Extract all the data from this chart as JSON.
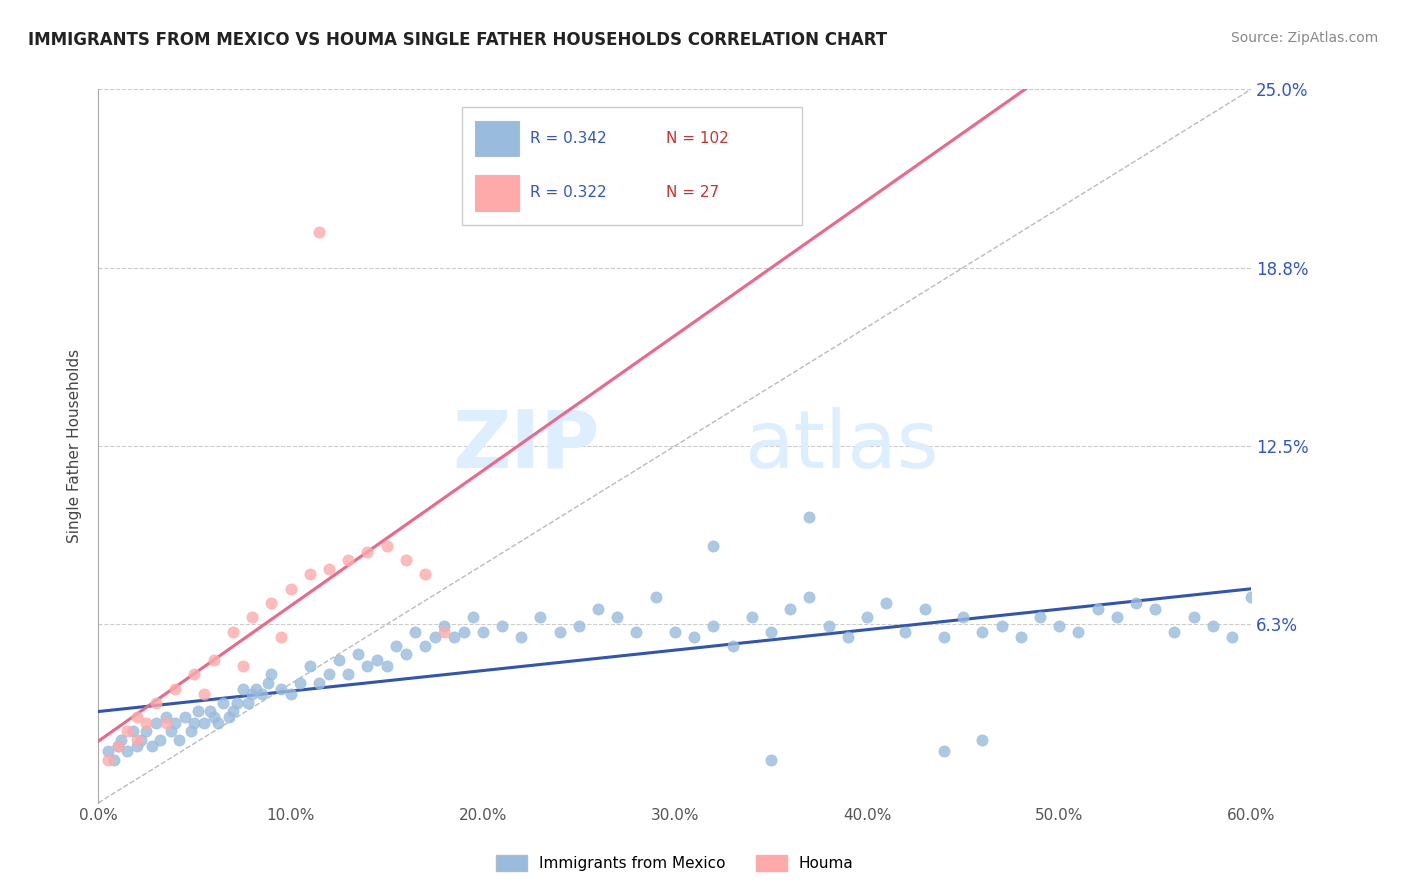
{
  "title": "IMMIGRANTS FROM MEXICO VS HOUMA SINGLE FATHER HOUSEHOLDS CORRELATION CHART",
  "source_text": "Source: ZipAtlas.com",
  "ylabel": "Single Father Households",
  "watermark_zip": "ZIP",
  "watermark_atlas": "atlas",
  "xmin": 0.0,
  "xmax": 0.6,
  "ymin": 0.0,
  "ymax": 0.25,
  "yticks": [
    0.0,
    0.0625,
    0.125,
    0.1875,
    0.25
  ],
  "ytick_labels": [
    "",
    "6.3%",
    "12.5%",
    "18.8%",
    "25.0%"
  ],
  "xticks": [
    0.0,
    0.1,
    0.2,
    0.3,
    0.4,
    0.5,
    0.6
  ],
  "xtick_labels": [
    "0.0%",
    "10.0%",
    "20.0%",
    "30.0%",
    "40.0%",
    "50.0%",
    "60.0%"
  ],
  "blue_color": "#99BBDD",
  "pink_color": "#FFAAAA",
  "blue_line_color": "#3355AA",
  "pink_line_color": "#EE6688",
  "diag_line_color": "#BBBBBB",
  "legend_R1": "0.342",
  "legend_N1": "102",
  "legend_R2": "0.322",
  "legend_N2": "27",
  "legend_label1": "Immigrants from Mexico",
  "legend_label2": "Houma",
  "text_blue": "#3355CC",
  "text_red": "#CC3333",
  "blue_x": [
    0.005,
    0.008,
    0.01,
    0.012,
    0.015,
    0.018,
    0.02,
    0.022,
    0.025,
    0.028,
    0.03,
    0.032,
    0.035,
    0.038,
    0.04,
    0.042,
    0.045,
    0.048,
    0.05,
    0.052,
    0.055,
    0.058,
    0.06,
    0.062,
    0.065,
    0.068,
    0.07,
    0.072,
    0.075,
    0.078,
    0.08,
    0.082,
    0.085,
    0.088,
    0.09,
    0.095,
    0.1,
    0.105,
    0.11,
    0.115,
    0.12,
    0.125,
    0.13,
    0.135,
    0.14,
    0.145,
    0.15,
    0.155,
    0.16,
    0.165,
    0.17,
    0.175,
    0.18,
    0.185,
    0.19,
    0.195,
    0.2,
    0.21,
    0.22,
    0.23,
    0.24,
    0.25,
    0.26,
    0.27,
    0.28,
    0.29,
    0.3,
    0.31,
    0.32,
    0.33,
    0.34,
    0.35,
    0.36,
    0.37,
    0.38,
    0.39,
    0.4,
    0.41,
    0.42,
    0.43,
    0.44,
    0.45,
    0.46,
    0.47,
    0.48,
    0.49,
    0.5,
    0.51,
    0.52,
    0.53,
    0.54,
    0.55,
    0.56,
    0.57,
    0.58,
    0.59,
    0.44,
    0.46,
    0.35,
    0.32,
    0.37,
    0.6
  ],
  "blue_y": [
    0.018,
    0.015,
    0.02,
    0.022,
    0.018,
    0.025,
    0.02,
    0.022,
    0.025,
    0.02,
    0.028,
    0.022,
    0.03,
    0.025,
    0.028,
    0.022,
    0.03,
    0.025,
    0.028,
    0.032,
    0.028,
    0.032,
    0.03,
    0.028,
    0.035,
    0.03,
    0.032,
    0.035,
    0.04,
    0.035,
    0.038,
    0.04,
    0.038,
    0.042,
    0.045,
    0.04,
    0.038,
    0.042,
    0.048,
    0.042,
    0.045,
    0.05,
    0.045,
    0.052,
    0.048,
    0.05,
    0.048,
    0.055,
    0.052,
    0.06,
    0.055,
    0.058,
    0.062,
    0.058,
    0.06,
    0.065,
    0.06,
    0.062,
    0.058,
    0.065,
    0.06,
    0.062,
    0.068,
    0.065,
    0.06,
    0.072,
    0.06,
    0.058,
    0.062,
    0.055,
    0.065,
    0.06,
    0.068,
    0.072,
    0.062,
    0.058,
    0.065,
    0.07,
    0.06,
    0.068,
    0.058,
    0.065,
    0.06,
    0.062,
    0.058,
    0.065,
    0.062,
    0.06,
    0.068,
    0.065,
    0.07,
    0.068,
    0.06,
    0.065,
    0.062,
    0.058,
    0.018,
    0.022,
    0.015,
    0.09,
    0.1,
    0.072
  ],
  "pink_x": [
    0.005,
    0.01,
    0.015,
    0.02,
    0.025,
    0.03,
    0.04,
    0.05,
    0.06,
    0.07,
    0.08,
    0.09,
    0.1,
    0.11,
    0.12,
    0.13,
    0.14,
    0.15,
    0.16,
    0.17,
    0.18,
    0.02,
    0.035,
    0.055,
    0.075,
    0.095,
    0.115
  ],
  "pink_y": [
    0.015,
    0.02,
    0.025,
    0.03,
    0.028,
    0.035,
    0.04,
    0.045,
    0.05,
    0.06,
    0.065,
    0.07,
    0.075,
    0.08,
    0.082,
    0.085,
    0.088,
    0.09,
    0.085,
    0.08,
    0.06,
    0.022,
    0.028,
    0.038,
    0.048,
    0.058,
    0.2
  ]
}
